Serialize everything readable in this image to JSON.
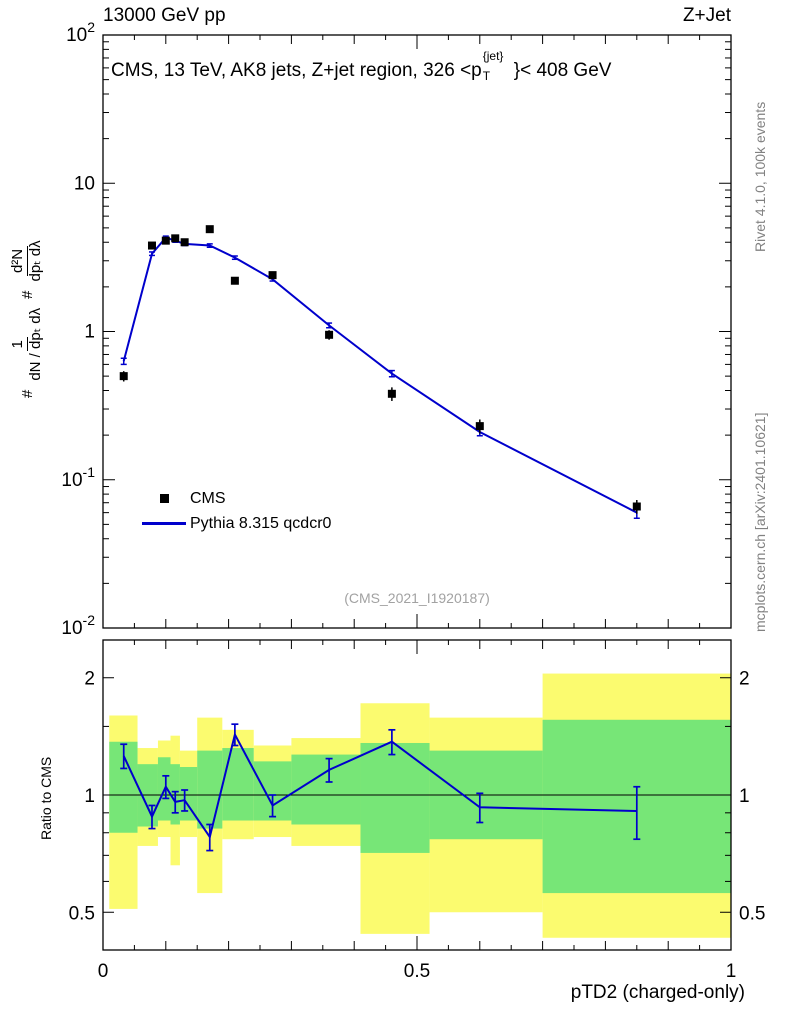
{
  "header": {
    "left_title": "13000 GeV pp",
    "right_title": "Z+Jet"
  },
  "panel_title": {
    "prefix": "CMS, 13 TeV, AK8 jets, Z+jet region, 326 <p",
    "sup": "{jet}",
    "sub": "T",
    "suffix": "}< 408 GeV"
  },
  "watermark": "(CMS_2021_I1920187)",
  "right_margin": {
    "top": "Rivet 4.1.0, 100k events",
    "bottom": "mcplots.cern.ch [arXiv:2401.10621]"
  },
  "y_axis_label": {
    "hash1": "#",
    "frac1_num": "1",
    "frac1_den": "dN / dpₜ dλ",
    "hash2": "#",
    "frac2_num": "d²N",
    "frac2_den": "dpₜ dλ"
  },
  "legend": [
    {
      "label": "CMS",
      "marker": "square",
      "color": "#000000"
    },
    {
      "label": "Pythia 8.315 qcdcr0",
      "marker": "line",
      "color": "#0000cc"
    }
  ],
  "chart_data": {
    "type": "line",
    "xlim": [
      0,
      1
    ],
    "xticks": [
      {
        "value": 0,
        "label": "0"
      },
      {
        "value": 0.5,
        "label": "0.5"
      },
      {
        "value": 1,
        "label": "1"
      }
    ],
    "x_axis_label": "pTD2 (charged-only)",
    "top_panel": {
      "yscale": "log",
      "ylim": [
        0.01,
        100
      ],
      "yticks": [
        {
          "value": 100,
          "base": "10",
          "exp": "2"
        },
        {
          "value": 10,
          "base": "10",
          "exp": ""
        },
        {
          "value": 1,
          "base": "1",
          "exp": ""
        },
        {
          "value": 0.1,
          "base": "10",
          "exp": "-1"
        },
        {
          "value": 0.01,
          "base": "10",
          "exp": "-2"
        }
      ],
      "series": [
        {
          "name": "CMS",
          "type": "scatter",
          "marker": "square",
          "color": "#000000",
          "x": [
            0.033,
            0.078,
            0.1,
            0.115,
            0.13,
            0.17,
            0.21,
            0.27,
            0.36,
            0.46,
            0.6,
            0.85
          ],
          "y": [
            0.5,
            3.8,
            4.1,
            4.25,
            4.0,
            4.9,
            2.2,
            2.4,
            0.95,
            0.38,
            0.23,
            0.066
          ],
          "yerr": [
            0.04,
            0.2,
            0.2,
            0.2,
            0.2,
            0.25,
            0.12,
            0.12,
            0.07,
            0.04,
            0.025,
            0.007
          ]
        },
        {
          "name": "Pythia 8.315 qcdcr0",
          "type": "line",
          "color": "#0000cc",
          "x": [
            0.033,
            0.078,
            0.1,
            0.115,
            0.13,
            0.17,
            0.21,
            0.27,
            0.36,
            0.46,
            0.6,
            0.85
          ],
          "y": [
            0.63,
            3.35,
            4.3,
            4.1,
            3.9,
            3.8,
            3.15,
            2.25,
            1.1,
            0.52,
            0.21,
            0.06
          ],
          "yerr": [
            0.03,
            0.09,
            0.1,
            0.1,
            0.1,
            0.1,
            0.08,
            0.06,
            0.04,
            0.025,
            0.012,
            0.005
          ]
        }
      ]
    },
    "ratio_panel": {
      "yscale": "log",
      "ylim": [
        0.4,
        2.5
      ],
      "ylabel": "Ratio to CMS",
      "yticks": [
        {
          "value": 0.5,
          "label": "0.5"
        },
        {
          "value": 1,
          "label": "1"
        },
        {
          "value": 2,
          "label": "2"
        }
      ],
      "line": {
        "name": "Pythia 8.315 qcdcr0 / CMS",
        "color": "#0000cc",
        "x": [
          0.033,
          0.078,
          0.1,
          0.115,
          0.13,
          0.17,
          0.21,
          0.27,
          0.36,
          0.46,
          0.6,
          0.85
        ],
        "y": [
          1.26,
          0.88,
          1.05,
          0.96,
          0.97,
          0.78,
          1.43,
          0.94,
          1.16,
          1.37,
          0.93,
          0.91
        ],
        "yerr": [
          0.09,
          0.06,
          0.07,
          0.06,
          0.06,
          0.06,
          0.09,
          0.06,
          0.08,
          0.1,
          0.08,
          0.14
        ]
      },
      "bands": {
        "green_color": "#77e677",
        "yellow_color": "#fbfb6f",
        "edges": [
          0.01,
          0.055,
          0.0875,
          0.1075,
          0.1225,
          0.15,
          0.19,
          0.24,
          0.3,
          0.41,
          0.52,
          0.7,
          1.0
        ],
        "green": [
          [
            0.8,
            1.37
          ],
          [
            0.83,
            1.2
          ],
          [
            0.86,
            1.25
          ],
          [
            0.84,
            1.2
          ],
          [
            0.86,
            1.18
          ],
          [
            0.82,
            1.3
          ],
          [
            0.86,
            1.32
          ],
          [
            0.86,
            1.22
          ],
          [
            0.84,
            1.27
          ],
          [
            0.71,
            1.36
          ],
          [
            0.77,
            1.3
          ],
          [
            0.56,
            1.56
          ]
        ],
        "yellow": [
          [
            0.51,
            1.6
          ],
          [
            0.74,
            1.32
          ],
          [
            0.78,
            1.38
          ],
          [
            0.66,
            1.42
          ],
          [
            0.78,
            1.3
          ],
          [
            0.56,
            1.58
          ],
          [
            0.77,
            1.47
          ],
          [
            0.78,
            1.34
          ],
          [
            0.74,
            1.4
          ],
          [
            0.44,
            1.72
          ],
          [
            0.5,
            1.58
          ],
          [
            0.43,
            2.05
          ]
        ]
      }
    }
  }
}
